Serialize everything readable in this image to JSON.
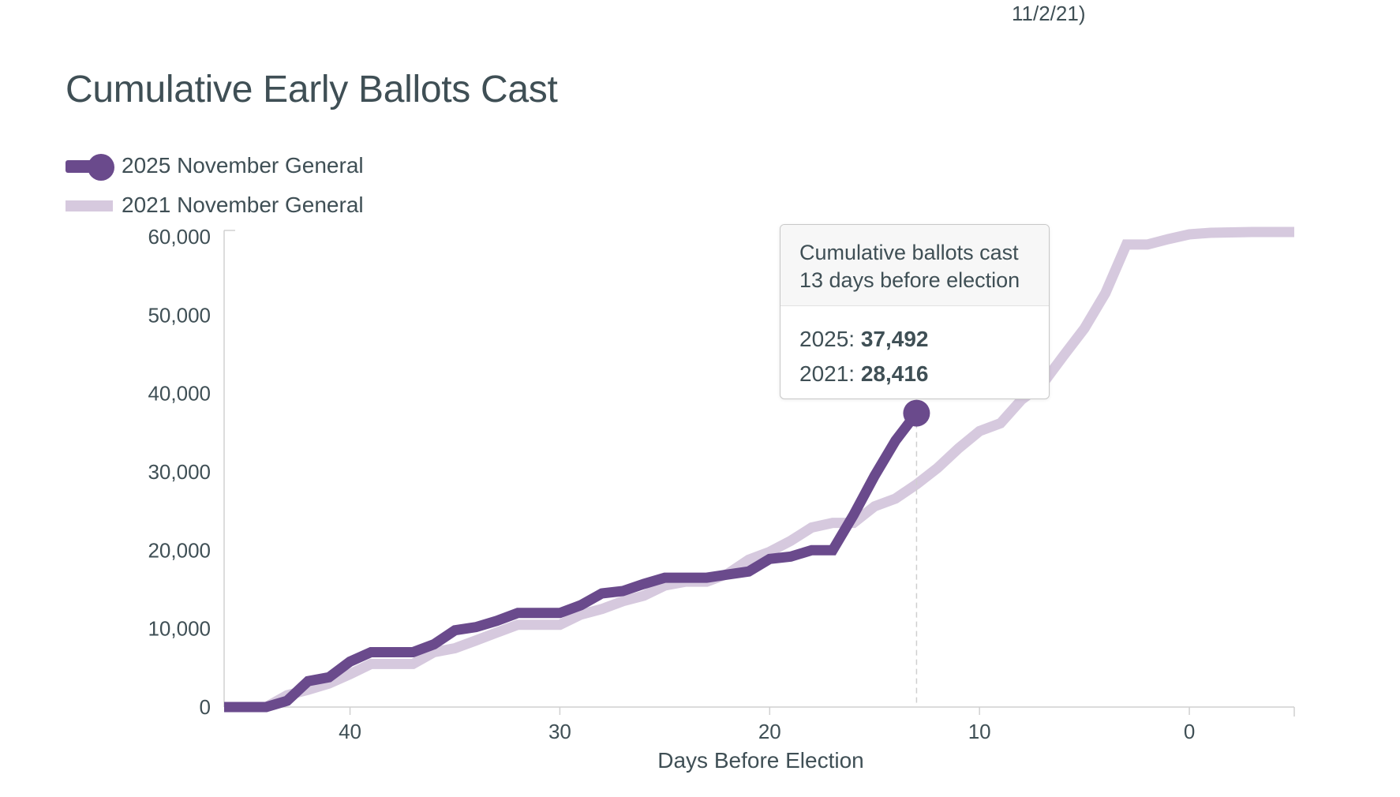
{
  "page": {
    "top_fragment": "11/2/21)"
  },
  "colors": {
    "series_2025": "#6a4a8c",
    "series_2021": "#d6c9de",
    "axis": "#d0d0d0",
    "text": "#3f4f55"
  },
  "chart_data": {
    "type": "line",
    "title": "Cumulative Early Ballots Cast",
    "xlabel": "Days Before Election",
    "ylabel": "",
    "xlim": [
      46,
      -5
    ],
    "ylim": [
      0,
      60000
    ],
    "x_ticks": [
      40,
      30,
      20,
      10,
      0
    ],
    "y_ticks": [
      0,
      10000,
      20000,
      30000,
      40000,
      50000,
      60000
    ],
    "y_tick_labels": [
      "0",
      "10,000",
      "20,000",
      "30,000",
      "40,000",
      "50,000",
      "60,000"
    ],
    "legend": [
      "2025 November General",
      "2021 November General"
    ],
    "series": [
      {
        "name": "2025 November General",
        "color": "#6a4a8c",
        "x": [
          46,
          44,
          43,
          42,
          41,
          40,
          39,
          38,
          37,
          36,
          35,
          34,
          33,
          32,
          31,
          30,
          29,
          28,
          27,
          26,
          25,
          24,
          23,
          22,
          21,
          20,
          19,
          18,
          17,
          16,
          15,
          14,
          13
        ],
        "y": [
          0,
          0,
          800,
          3300,
          3800,
          5800,
          7000,
          7000,
          7000,
          8000,
          9800,
          10200,
          11000,
          12000,
          12000,
          12000,
          13000,
          14500,
          14800,
          15700,
          16500,
          16500,
          16500,
          16900,
          17300,
          18900,
          19200,
          20000,
          20000,
          24500,
          29500,
          34000,
          37492
        ]
      },
      {
        "name": "2021 November General",
        "color": "#d6c9de",
        "x": [
          46,
          44,
          43,
          42,
          41,
          40,
          39,
          38,
          37,
          36,
          35,
          34,
          33,
          32,
          31,
          30,
          29,
          28,
          27,
          26,
          25,
          24,
          23,
          22,
          21,
          20,
          19,
          18,
          17,
          16,
          15,
          14,
          13,
          12,
          11,
          10,
          9,
          8,
          7,
          6,
          5,
          4,
          3,
          2,
          1,
          0,
          -1,
          -3,
          -5
        ],
        "y": [
          0,
          0,
          1500,
          2200,
          3000,
          4200,
          5500,
          5500,
          5500,
          7000,
          7500,
          8500,
          9500,
          10500,
          10500,
          10500,
          11800,
          12500,
          13500,
          14200,
          15500,
          16000,
          16000,
          17000,
          18800,
          19800,
          21200,
          22900,
          23500,
          23500,
          25600,
          26600,
          28416,
          30500,
          33000,
          35200,
          36200,
          39200,
          41200,
          44800,
          48300,
          52800,
          59000,
          59000,
          59700,
          60300,
          60500,
          60600,
          60600
        ]
      }
    ],
    "tooltip": {
      "header_line1": "Cumulative ballots cast",
      "header_line2": "13 days before election",
      "label_2025": "2025:",
      "value_2025": "37,492",
      "label_2021": "2021:",
      "value_2021": "28,416"
    },
    "highlight_x": 13,
    "highlight_y": 37492
  }
}
